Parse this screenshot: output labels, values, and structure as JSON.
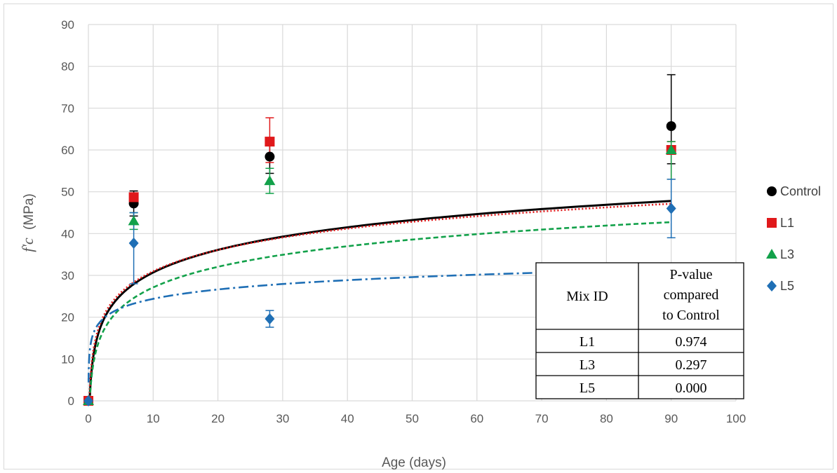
{
  "chart_data": {
    "type": "scatter",
    "xlabel": "Age (days)",
    "ylabel_prefix": "f'c",
    "ylabel_unit": "(MPa)",
    "xlim": [
      0,
      100
    ],
    "ylim": [
      0,
      90
    ],
    "x_ticks": [
      "0",
      "10",
      "20",
      "30",
      "40",
      "50",
      "60",
      "70",
      "80",
      "90",
      "100"
    ],
    "y_ticks": [
      "0",
      "10",
      "20",
      "30",
      "40",
      "50",
      "60",
      "70",
      "80",
      "90"
    ],
    "grid": true,
    "legend_position": "right",
    "series": [
      {
        "name": "Control",
        "marker": "circle",
        "color": "#000000",
        "line_style": "solid",
        "x": [
          0,
          7,
          28,
          90
        ],
        "y": [
          0,
          47.2,
          58.4,
          65.7
        ],
        "err_low": [
          0,
          3.0,
          4.0,
          9.0
        ],
        "err_high": [
          0,
          3.0,
          4.0,
          12.3
        ],
        "trend": {
          "a": 12.76,
          "b": 7.79
        }
      },
      {
        "name": "L1",
        "marker": "square",
        "color": "#e0191b",
        "line_style": "dotted",
        "x": [
          0,
          7,
          28,
          90
        ],
        "y": [
          0,
          48.7,
          62.0,
          60.0
        ],
        "err_low": [
          0,
          1.0,
          5.0,
          7.0
        ],
        "err_high": [
          0,
          1.0,
          5.7,
          2.0
        ],
        "trend": {
          "a": 14.06,
          "b": 7.35
        }
      },
      {
        "name": "L3",
        "marker": "triangle",
        "color": "#12a14a",
        "line_style": "dashed",
        "x": [
          0,
          7,
          28,
          90
        ],
        "y": [
          0,
          43.0,
          52.6,
          60.0
        ],
        "err_low": [
          0,
          2.0,
          3.0,
          7.0
        ],
        "err_high": [
          0,
          2.0,
          3.0,
          2.0
        ],
        "trend": {
          "a": 10.75,
          "b": 7.11
        }
      },
      {
        "name": "L5",
        "marker": "diamond",
        "color": "#1f6fb5",
        "line_style": "dash-dot",
        "x": [
          0,
          7,
          28,
          90
        ],
        "y": [
          0,
          37.7,
          19.6,
          46.0
        ],
        "err_low": [
          0,
          9.7,
          2.0,
          7.0
        ],
        "err_high": [
          0,
          7.3,
          2.0,
          7.0
        ],
        "trend": {
          "a": 16.98,
          "b": 3.22
        }
      }
    ]
  },
  "stats_table": {
    "header_col1": "Mix ID",
    "header_col2_lines": [
      "P-value",
      "compared",
      "to Control"
    ],
    "rows": [
      {
        "mix": "L1",
        "p": "0.974"
      },
      {
        "mix": "L3",
        "p": "0.297"
      },
      {
        "mix": "L5",
        "p": "0.000"
      }
    ]
  }
}
